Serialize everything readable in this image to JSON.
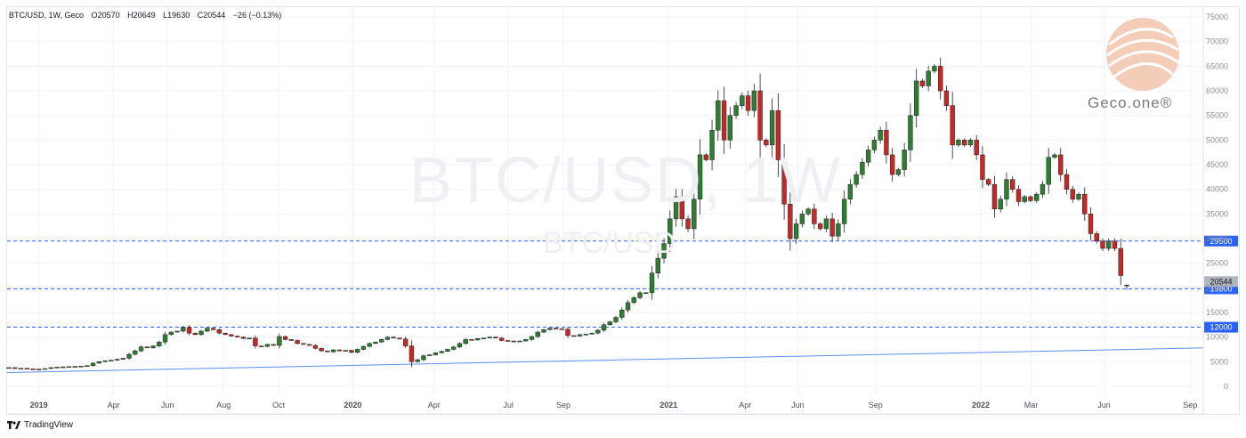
{
  "legend": {
    "symbol": "BTC/USD, 1W, Geco",
    "o_label": "O",
    "o_value": "20570",
    "h_label": "H",
    "h_value": "20649",
    "l_label": "L",
    "l_value": "19630",
    "c_label": "C",
    "c_value": "20544",
    "change": "−26 (−0.13%)"
  },
  "watermark": {
    "main": "BTC/USD, 1W",
    "sub": "BTC/USD"
  },
  "logo": {
    "text": "Geco.one®"
  },
  "footer": {
    "brand": "TradingView"
  },
  "chart_data": {
    "type": "candlestick",
    "interval": "1W",
    "ylim": [
      -2000,
      77000
    ],
    "y_ticks": [
      0,
      5000,
      10000,
      15000,
      20000,
      25000,
      30000,
      35000,
      40000,
      45000,
      50000,
      55000,
      60000,
      65000,
      70000,
      75000
    ],
    "x_ticks": [
      {
        "label": "2019",
        "bold": true
      },
      {
        "label": "Apr"
      },
      {
        "label": "Jun"
      },
      {
        "label": "Aug"
      },
      {
        "label": "Oct"
      },
      {
        "label": "2020",
        "bold": true
      },
      {
        "label": "Apr"
      },
      {
        "label": "Jul"
      },
      {
        "label": "Sep"
      },
      {
        "label": "2021",
        "bold": true
      },
      {
        "label": "Apr"
      },
      {
        "label": "Jun"
      },
      {
        "label": "Sep"
      },
      {
        "label": "2022",
        "bold": true
      },
      {
        "label": "Mar"
      },
      {
        "label": "Jun"
      },
      {
        "label": "Sep"
      }
    ],
    "levels": [
      {
        "value": 29500,
        "label": "29500",
        "color": "#2962ff"
      },
      {
        "value": 19800,
        "label": "19800",
        "color": "#2962ff"
      },
      {
        "value": 12000,
        "label": "12000",
        "color": "#2962ff"
      }
    ],
    "last_price": {
      "value": 20544,
      "label": "20544",
      "color": "#b2b5be"
    },
    "trendline": {
      "start": 2800,
      "end": 7800,
      "color": "#5b8def"
    },
    "colors": {
      "up": "#2e7d32",
      "down": "#c62828",
      "grid": "#f0f3fa"
    },
    "candles_close": [
      3800,
      3600,
      3650,
      3550,
      3500,
      3480,
      3600,
      3800,
      3900,
      3950,
      4000,
      4050,
      4100,
      4200,
      4700,
      5000,
      5200,
      5300,
      5500,
      5700,
      6500,
      7200,
      8000,
      7800,
      8200,
      9000,
      10500,
      11000,
      11200,
      12000,
      10800,
      10500,
      11200,
      11800,
      11500,
      10800,
      10500,
      10200,
      10000,
      9700,
      9800,
      8200,
      8100,
      8500,
      8300,
      10100,
      9500,
      9300,
      8700,
      8500,
      8300,
      7700,
      7200,
      7000,
      7400,
      7200,
      7300,
      6900,
      7500,
      8100,
      8700,
      9000,
      9500,
      10000,
      9800,
      9600,
      8200,
      5000,
      5400,
      6200,
      6400,
      6800,
      7100,
      7500,
      8000,
      8700,
      9500,
      9400,
      9700,
      9800,
      10000,
      9800,
      9300,
      9200,
      9100,
      9200,
      9500,
      10100,
      11000,
      11500,
      11800,
      11700,
      11600,
      10300,
      10200,
      10500,
      10600,
      10800,
      11400,
      12500,
      13100,
      14000,
      15500,
      17000,
      18000,
      19000,
      19000,
      23000,
      26000,
      29000,
      34000,
      38500,
      34000,
      32000,
      38000,
      47000,
      46000,
      52000,
      58000,
      50000,
      55000,
      57000,
      59000,
      56000,
      60000,
      50000,
      49000,
      56000,
      46000,
      37000,
      30000,
      33000,
      35000,
      36000,
      33000,
      32000,
      34000,
      30500,
      33000,
      38000,
      41000,
      43000,
      45500,
      48000,
      50000,
      52000,
      47000,
      43000,
      44000,
      48000,
      55000,
      62000,
      61000,
      64000,
      65000,
      60000,
      57000,
      49000,
      50000,
      49000,
      50000,
      47000,
      42000,
      41000,
      36000,
      38000,
      42000,
      40000,
      37500,
      38500,
      37700,
      39000,
      41000,
      46500,
      47000,
      43000,
      40000,
      38000,
      39000,
      35000,
      31000,
      29500,
      28000,
      29500,
      28000,
      22500,
      20544
    ],
    "candles_last_open": 20570,
    "candles_last_high": 20649,
    "candles_last_low": 19630
  }
}
